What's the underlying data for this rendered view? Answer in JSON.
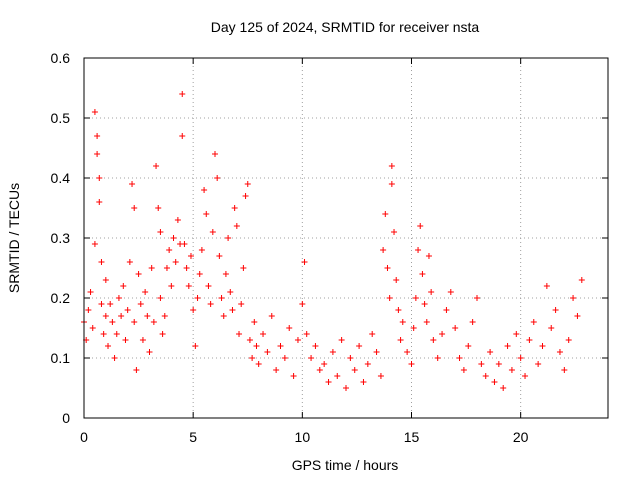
{
  "chart_data": {
    "type": "scatter",
    "title": "Day 125 of 2024, SRMTID for receiver nsta",
    "xlabel": "GPS time / hours",
    "ylabel": "SRMTID / TECUs",
    "xlim": [
      0,
      24
    ],
    "ylim": [
      0,
      0.6
    ],
    "x_ticks": [
      0,
      5,
      10,
      15,
      20
    ],
    "x_tick_labels": [
      "0",
      "5",
      "10",
      "15",
      "20"
    ],
    "y_ticks": [
      0,
      0.1,
      0.2,
      0.3,
      0.4,
      0.5,
      0.6
    ],
    "y_tick_labels": [
      "0",
      "0.1",
      "0.2",
      "0.3",
      "0.4",
      "0.5",
      "0.6"
    ],
    "grid": true,
    "marker": "plus",
    "series": [
      {
        "name": "SRMTID",
        "color": "#ff0000",
        "x": [
          0.0,
          0.1,
          0.2,
          0.3,
          0.4,
          0.5,
          0.5,
          0.6,
          0.6,
          0.7,
          0.7,
          0.8,
          0.8,
          0.9,
          1.0,
          1.0,
          1.1,
          1.2,
          1.3,
          1.4,
          1.5,
          1.6,
          1.7,
          1.8,
          1.9,
          2.0,
          2.1,
          2.2,
          2.3,
          2.3,
          2.4,
          2.5,
          2.6,
          2.7,
          2.8,
          2.9,
          3.0,
          3.1,
          3.2,
          3.3,
          3.4,
          3.5,
          3.5,
          3.6,
          3.7,
          3.8,
          3.9,
          4.0,
          4.1,
          4.2,
          4.3,
          4.4,
          4.5,
          4.5,
          4.6,
          4.7,
          4.8,
          4.9,
          5.0,
          5.1,
          5.2,
          5.3,
          5.4,
          5.5,
          5.6,
          5.7,
          5.8,
          5.9,
          6.0,
          6.1,
          6.2,
          6.3,
          6.4,
          6.5,
          6.6,
          6.7,
          6.8,
          6.9,
          7.0,
          7.1,
          7.2,
          7.3,
          7.4,
          7.5,
          7.6,
          7.7,
          7.8,
          7.9,
          8.0,
          8.2,
          8.4,
          8.6,
          8.8,
          9.0,
          9.2,
          9.4,
          9.6,
          9.8,
          10.0,
          10.1,
          10.2,
          10.4,
          10.6,
          10.8,
          11.0,
          11.2,
          11.4,
          11.6,
          11.8,
          12.0,
          12.2,
          12.4,
          12.6,
          12.8,
          13.0,
          13.2,
          13.4,
          13.6,
          13.7,
          13.8,
          13.9,
          14.0,
          14.1,
          14.1,
          14.2,
          14.3,
          14.4,
          14.5,
          14.6,
          14.8,
          15.0,
          15.1,
          15.2,
          15.3,
          15.4,
          15.5,
          15.6,
          15.7,
          15.8,
          15.9,
          16.0,
          16.2,
          16.4,
          16.6,
          16.8,
          17.0,
          17.2,
          17.4,
          17.6,
          17.8,
          18.0,
          18.2,
          18.4,
          18.6,
          18.8,
          19.0,
          19.2,
          19.4,
          19.6,
          19.8,
          20.0,
          20.2,
          20.4,
          20.6,
          20.8,
          21.0,
          21.2,
          21.4,
          21.6,
          21.8,
          22.0,
          22.2,
          22.4,
          22.6,
          22.8
        ],
        "y": [
          0.16,
          0.13,
          0.18,
          0.21,
          0.15,
          0.29,
          0.51,
          0.47,
          0.44,
          0.4,
          0.36,
          0.26,
          0.19,
          0.14,
          0.17,
          0.23,
          0.12,
          0.19,
          0.16,
          0.1,
          0.14,
          0.2,
          0.17,
          0.22,
          0.13,
          0.18,
          0.26,
          0.39,
          0.35,
          0.16,
          0.08,
          0.24,
          0.19,
          0.13,
          0.21,
          0.17,
          0.11,
          0.25,
          0.16,
          0.42,
          0.35,
          0.31,
          0.2,
          0.14,
          0.17,
          0.25,
          0.28,
          0.22,
          0.3,
          0.26,
          0.33,
          0.29,
          0.54,
          0.47,
          0.29,
          0.25,
          0.22,
          0.27,
          0.18,
          0.12,
          0.2,
          0.24,
          0.28,
          0.38,
          0.34,
          0.22,
          0.19,
          0.31,
          0.44,
          0.4,
          0.27,
          0.2,
          0.17,
          0.24,
          0.3,
          0.21,
          0.18,
          0.35,
          0.32,
          0.14,
          0.19,
          0.25,
          0.37,
          0.39,
          0.13,
          0.1,
          0.16,
          0.12,
          0.09,
          0.14,
          0.11,
          0.17,
          0.08,
          0.12,
          0.1,
          0.15,
          0.07,
          0.13,
          0.19,
          0.26,
          0.14,
          0.1,
          0.12,
          0.08,
          0.09,
          0.06,
          0.11,
          0.07,
          0.13,
          0.05,
          0.1,
          0.08,
          0.12,
          0.06,
          0.09,
          0.14,
          0.11,
          0.07,
          0.28,
          0.34,
          0.25,
          0.2,
          0.42,
          0.39,
          0.31,
          0.23,
          0.18,
          0.13,
          0.16,
          0.11,
          0.09,
          0.15,
          0.2,
          0.28,
          0.32,
          0.24,
          0.19,
          0.16,
          0.27,
          0.21,
          0.13,
          0.1,
          0.14,
          0.18,
          0.21,
          0.15,
          0.1,
          0.08,
          0.12,
          0.16,
          0.2,
          0.09,
          0.07,
          0.11,
          0.06,
          0.09,
          0.05,
          0.12,
          0.08,
          0.14,
          0.1,
          0.07,
          0.13,
          0.16,
          0.09,
          0.12,
          0.22,
          0.15,
          0.18,
          0.11,
          0.08,
          0.13,
          0.2,
          0.17,
          0.23
        ]
      }
    ]
  }
}
